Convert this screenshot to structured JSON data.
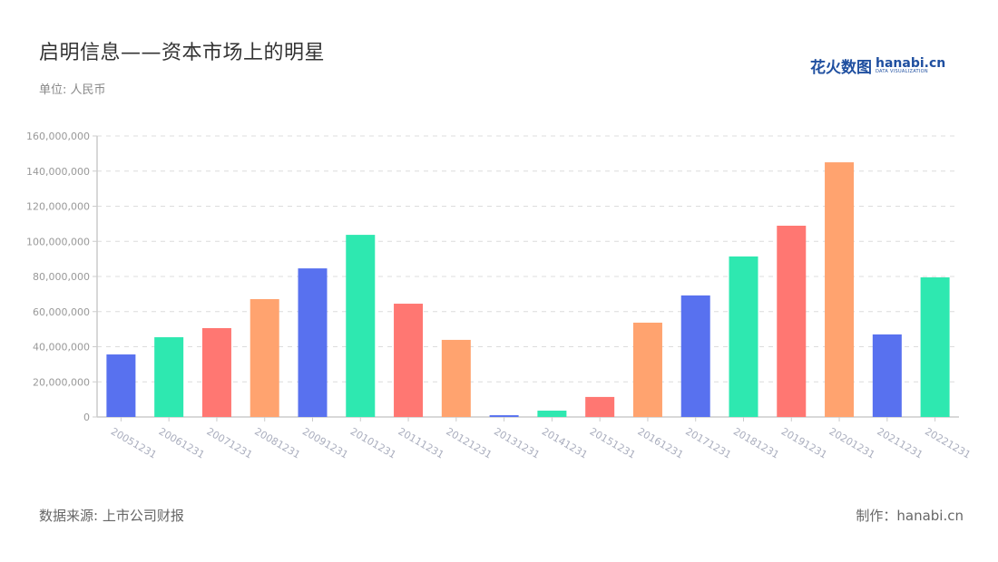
{
  "header": {
    "title": "启明信息——资本市场上的明星",
    "unit": "单位: 人民币"
  },
  "logo": {
    "cn": "花火数图",
    "en": "hanabi.cn",
    "tagline": "DATA VISUALIZATION"
  },
  "footer": {
    "source": "数据来源: 上市公司财报",
    "credit": "制作：hanabi.cn"
  },
  "palette": [
    "#5871ef",
    "#2ee8b0",
    "#ff7772",
    "#ffa36f"
  ],
  "chart_data": {
    "type": "bar",
    "title": "启明信息——资本市场上的明星",
    "subtitle": "单位: 人民币",
    "xlabel": "",
    "ylabel": "",
    "ylim": [
      0,
      160000000
    ],
    "yticks": [
      0,
      20000000,
      40000000,
      60000000,
      80000000,
      100000000,
      120000000,
      140000000,
      160000000
    ],
    "ytick_labels": [
      "0",
      "20,000,000",
      "40,000,000",
      "60,000,000",
      "80,000,000",
      "100,000,000",
      "120,000,000",
      "140,000,000",
      "160,000,000"
    ],
    "grid": true,
    "legend": "none",
    "categories": [
      "20051231",
      "20061231",
      "20071231",
      "20081231",
      "20091231",
      "20101231",
      "20111231",
      "20121231",
      "20131231",
      "20141231",
      "20151231",
      "20161231",
      "20171231",
      "20181231",
      "20191231",
      "20201231",
      "20211231",
      "20221231"
    ],
    "values": [
      35600000,
      45400000,
      50600000,
      67100000,
      84600000,
      103700000,
      64500000,
      43900000,
      1000000,
      3600000,
      11400000,
      53700000,
      69200000,
      91400000,
      108900000,
      145000000,
      47000000,
      79500000
    ],
    "colors": [
      "#5871ef",
      "#2ee8b0",
      "#ff7772",
      "#ffa36f",
      "#5871ef",
      "#2ee8b0",
      "#ff7772",
      "#ffa36f",
      "#5871ef",
      "#2ee8b0",
      "#ff7772",
      "#ffa36f",
      "#5871ef",
      "#2ee8b0",
      "#ff7772",
      "#ffa36f",
      "#5871ef",
      "#2ee8b0"
    ]
  }
}
